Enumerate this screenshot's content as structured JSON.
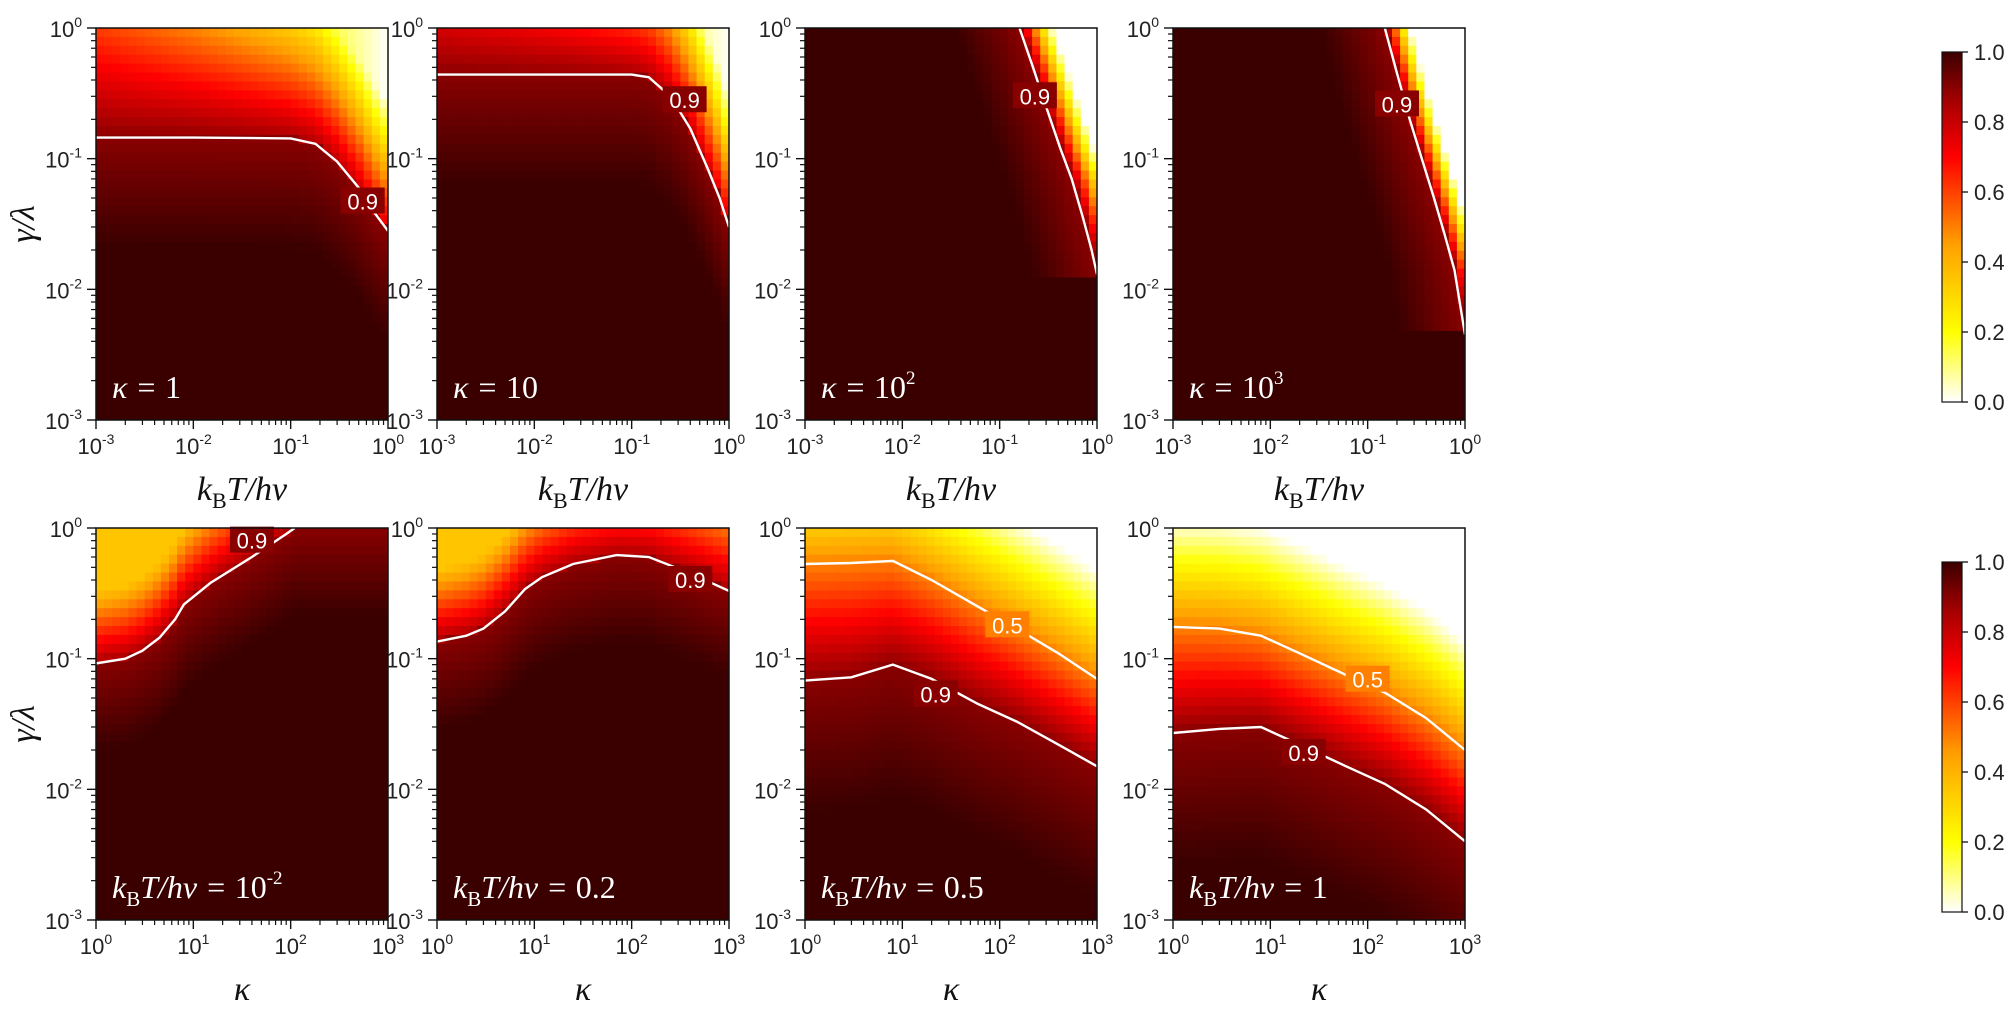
{
  "chart_data": [
    {
      "type": "heatmap",
      "xlabel": {
        "pre": "k",
        "sub": "B",
        "post": "T/hν"
      },
      "ylabel": "γ/λ",
      "x_scale": "log",
      "y_scale": "log",
      "xlim": [
        0.001,
        1
      ],
      "ylim": [
        0.001,
        1
      ],
      "x_ticks": [
        {
          "b": "10",
          "e": "-3"
        },
        {
          "b": "10",
          "e": "-2"
        },
        {
          "b": "10",
          "e": "-1"
        },
        {
          "b": "10",
          "e": "0"
        }
      ],
      "y_ticks": [
        {
          "b": "10",
          "e": "-3"
        },
        {
          "b": "10",
          "e": "-2"
        },
        {
          "b": "10",
          "e": "-1"
        },
        {
          "b": "10",
          "e": "0"
        }
      ],
      "annotation": {
        "pre": "κ = ",
        "sub": "",
        "mid": "",
        "base": "1",
        "sup": ""
      },
      "contours": [
        {
          "level": 0.9,
          "label": "0.9",
          "label_at": [
            0.55,
            0.047
          ],
          "points": [
            [
              0.001,
              0.145
            ],
            [
              0.01,
              0.145
            ],
            [
              0.1,
              0.143
            ],
            [
              0.18,
              0.13
            ],
            [
              0.3,
              0.095
            ],
            [
              0.5,
              0.06
            ],
            [
              0.7,
              0.04
            ],
            [
              1,
              0.028
            ]
          ]
        }
      ]
    },
    {
      "type": "heatmap",
      "xlabel": {
        "pre": "k",
        "sub": "B",
        "post": "T/hν"
      },
      "ylabel": "",
      "x_scale": "log",
      "y_scale": "log",
      "xlim": [
        0.001,
        1
      ],
      "ylim": [
        0.001,
        1
      ],
      "x_ticks": [
        {
          "b": "10",
          "e": "-3"
        },
        {
          "b": "10",
          "e": "-2"
        },
        {
          "b": "10",
          "e": "-1"
        },
        {
          "b": "10",
          "e": "0"
        }
      ],
      "y_ticks": [
        {
          "b": "10",
          "e": "-3"
        },
        {
          "b": "10",
          "e": "-2"
        },
        {
          "b": "10",
          "e": "-1"
        },
        {
          "b": "10",
          "e": "0"
        }
      ],
      "annotation": {
        "pre": "κ = ",
        "sub": "",
        "mid": "",
        "base": "10",
        "sup": ""
      },
      "contours": [
        {
          "level": 0.9,
          "label": "0.9",
          "label_at": [
            0.35,
            0.28
          ],
          "points": [
            [
              0.001,
              0.44
            ],
            [
              0.01,
              0.44
            ],
            [
              0.1,
              0.44
            ],
            [
              0.15,
              0.42
            ],
            [
              0.25,
              0.3
            ],
            [
              0.4,
              0.17
            ],
            [
              0.6,
              0.085
            ],
            [
              0.8,
              0.05
            ],
            [
              1,
              0.03
            ]
          ]
        }
      ]
    },
    {
      "type": "heatmap",
      "xlabel": {
        "pre": "k",
        "sub": "B",
        "post": "T/hν"
      },
      "ylabel": "",
      "x_scale": "log",
      "y_scale": "log",
      "xlim": [
        0.001,
        1
      ],
      "ylim": [
        0.001,
        1
      ],
      "x_ticks": [
        {
          "b": "10",
          "e": "-3"
        },
        {
          "b": "10",
          "e": "-2"
        },
        {
          "b": "10",
          "e": "-1"
        },
        {
          "b": "10",
          "e": "0"
        }
      ],
      "y_ticks": [
        {
          "b": "10",
          "e": "-3"
        },
        {
          "b": "10",
          "e": "-2"
        },
        {
          "b": "10",
          "e": "-1"
        },
        {
          "b": "10",
          "e": "0"
        }
      ],
      "annotation": {
        "pre": "κ = ",
        "sub": "",
        "mid": "",
        "base": "10",
        "sup": "2"
      },
      "contours": [
        {
          "level": 0.9,
          "label": "0.9",
          "label_at": [
            0.23,
            0.3
          ],
          "points": [
            [
              0.16,
              1.0
            ],
            [
              0.22,
              0.5
            ],
            [
              0.3,
              0.25
            ],
            [
              0.42,
              0.12
            ],
            [
              0.55,
              0.07
            ],
            [
              0.72,
              0.035
            ],
            [
              0.88,
              0.02
            ],
            [
              1,
              0.013
            ]
          ]
        }
      ]
    },
    {
      "type": "heatmap",
      "xlabel": {
        "pre": "k",
        "sub": "B",
        "post": "T/hν"
      },
      "ylabel": "",
      "x_scale": "log",
      "y_scale": "log",
      "xlim": [
        0.001,
        1
      ],
      "ylim": [
        0.001,
        1
      ],
      "x_ticks": [
        {
          "b": "10",
          "e": "-3"
        },
        {
          "b": "10",
          "e": "-2"
        },
        {
          "b": "10",
          "e": "-1"
        },
        {
          "b": "10",
          "e": "0"
        }
      ],
      "y_ticks": [
        {
          "b": "10",
          "e": "-3"
        },
        {
          "b": "10",
          "e": "-2"
        },
        {
          "b": "10",
          "e": "-1"
        },
        {
          "b": "10",
          "e": "0"
        }
      ],
      "annotation": {
        "pre": "κ = ",
        "sub": "",
        "mid": "",
        "base": "10",
        "sup": "3"
      },
      "contours": [
        {
          "level": 0.9,
          "label": "0.9",
          "label_at": [
            0.2,
            0.26
          ],
          "points": [
            [
              0.15,
              1.0
            ],
            [
              0.2,
              0.45
            ],
            [
              0.27,
              0.2
            ],
            [
              0.36,
              0.1
            ],
            [
              0.48,
              0.05
            ],
            [
              0.62,
              0.026
            ],
            [
              0.78,
              0.014
            ],
            [
              1,
              0.0045
            ]
          ]
        }
      ]
    },
    {
      "type": "heatmap",
      "xlabel": "κ",
      "ylabel": "γ/λ",
      "x_scale": "log",
      "y_scale": "log",
      "xlim": [
        1,
        1000
      ],
      "ylim": [
        0.001,
        1
      ],
      "x_ticks": [
        {
          "b": "10",
          "e": "0"
        },
        {
          "b": "10",
          "e": "1"
        },
        {
          "b": "10",
          "e": "2"
        },
        {
          "b": "10",
          "e": "3"
        }
      ],
      "y_ticks": [
        {
          "b": "10",
          "e": "-3"
        },
        {
          "b": "10",
          "e": "-2"
        },
        {
          "b": "10",
          "e": "-1"
        },
        {
          "b": "10",
          "e": "0"
        }
      ],
      "annotation": {
        "pre": "k",
        "sub": "B",
        "mid": "T/hν = ",
        "base": "10",
        "sup": "-2"
      },
      "contours": [
        {
          "level": 0.9,
          "label": "0.9",
          "label_at": [
            40,
            0.8
          ],
          "points": [
            [
              1,
              0.092
            ],
            [
              2,
              0.1
            ],
            [
              3,
              0.115
            ],
            [
              4.5,
              0.145
            ],
            [
              6.5,
              0.2
            ],
            [
              8,
              0.26
            ],
            [
              15,
              0.38
            ],
            [
              40,
              0.6
            ],
            [
              90,
              0.9
            ],
            [
              110,
              1.0
            ]
          ]
        }
      ]
    },
    {
      "type": "heatmap",
      "xlabel": "κ",
      "ylabel": "",
      "x_scale": "log",
      "y_scale": "log",
      "xlim": [
        1,
        1000
      ],
      "ylim": [
        0.001,
        1
      ],
      "x_ticks": [
        {
          "b": "10",
          "e": "0"
        },
        {
          "b": "10",
          "e": "1"
        },
        {
          "b": "10",
          "e": "2"
        },
        {
          "b": "10",
          "e": "3"
        }
      ],
      "y_ticks": [
        {
          "b": "10",
          "e": "-3"
        },
        {
          "b": "10",
          "e": "-2"
        },
        {
          "b": "10",
          "e": "-1"
        },
        {
          "b": "10",
          "e": "0"
        }
      ],
      "annotation": {
        "pre": "k",
        "sub": "B",
        "mid": "T/hν = ",
        "base": "0.2",
        "sup": ""
      },
      "contours": [
        {
          "level": 0.9,
          "label": "0.9",
          "label_at": [
            400,
            0.4
          ],
          "points": [
            [
              1,
              0.135
            ],
            [
              2,
              0.15
            ],
            [
              3,
              0.17
            ],
            [
              5,
              0.23
            ],
            [
              8,
              0.34
            ],
            [
              12,
              0.42
            ],
            [
              25,
              0.53
            ],
            [
              70,
              0.62
            ],
            [
              150,
              0.6
            ],
            [
              400,
              0.45
            ],
            [
              1000,
              0.33
            ]
          ]
        }
      ]
    },
    {
      "type": "heatmap",
      "xlabel": "κ",
      "ylabel": "",
      "x_scale": "log",
      "y_scale": "log",
      "xlim": [
        1,
        1000
      ],
      "ylim": [
        0.001,
        1
      ],
      "x_ticks": [
        {
          "b": "10",
          "e": "0"
        },
        {
          "b": "10",
          "e": "1"
        },
        {
          "b": "10",
          "e": "2"
        },
        {
          "b": "10",
          "e": "3"
        }
      ],
      "y_ticks": [
        {
          "b": "10",
          "e": "-3"
        },
        {
          "b": "10",
          "e": "-2"
        },
        {
          "b": "10",
          "e": "-1"
        },
        {
          "b": "10",
          "e": "0"
        }
      ],
      "annotation": {
        "pre": "k",
        "sub": "B",
        "mid": "T/hν = ",
        "base": "0.5",
        "sup": ""
      },
      "contours": [
        {
          "level": 0.5,
          "label": "0.5",
          "label_at": [
            120,
            0.18
          ],
          "points": [
            [
              1,
              0.53
            ],
            [
              3,
              0.54
            ],
            [
              8,
              0.56
            ],
            [
              20,
              0.4
            ],
            [
              60,
              0.25
            ],
            [
              150,
              0.17
            ],
            [
              400,
              0.11
            ],
            [
              1000,
              0.07
            ]
          ]
        },
        {
          "level": 0.9,
          "label": "0.9",
          "label_at": [
            22,
            0.053
          ],
          "points": [
            [
              1,
              0.068
            ],
            [
              3,
              0.072
            ],
            [
              8,
              0.09
            ],
            [
              20,
              0.07
            ],
            [
              60,
              0.045
            ],
            [
              150,
              0.033
            ],
            [
              400,
              0.022
            ],
            [
              1000,
              0.015
            ]
          ]
        }
      ]
    },
    {
      "type": "heatmap",
      "xlabel": "κ",
      "ylabel": "",
      "x_scale": "log",
      "y_scale": "log",
      "xlim": [
        1,
        1000
      ],
      "ylim": [
        0.001,
        1
      ],
      "x_ticks": [
        {
          "b": "10",
          "e": "0"
        },
        {
          "b": "10",
          "e": "1"
        },
        {
          "b": "10",
          "e": "2"
        },
        {
          "b": "10",
          "e": "3"
        }
      ],
      "y_ticks": [
        {
          "b": "10",
          "e": "-3"
        },
        {
          "b": "10",
          "e": "-2"
        },
        {
          "b": "10",
          "e": "-1"
        },
        {
          "b": "10",
          "e": "0"
        }
      ],
      "annotation": {
        "pre": "k",
        "sub": "B",
        "mid": "T/hν = ",
        "base": "1",
        "sup": ""
      },
      "contours": [
        {
          "level": 0.5,
          "label": "0.5",
          "label_at": [
            100,
            0.069
          ],
          "points": [
            [
              1,
              0.175
            ],
            [
              3,
              0.17
            ],
            [
              8,
              0.15
            ],
            [
              20,
              0.11
            ],
            [
              60,
              0.075
            ],
            [
              150,
              0.055
            ],
            [
              400,
              0.035
            ],
            [
              1000,
              0.02
            ]
          ]
        },
        {
          "level": 0.9,
          "label": "0.9",
          "label_at": [
            22,
            0.019
          ],
          "points": [
            [
              1,
              0.027
            ],
            [
              3,
              0.029
            ],
            [
              8,
              0.03
            ],
            [
              20,
              0.022
            ],
            [
              60,
              0.015
            ],
            [
              150,
              0.011
            ],
            [
              400,
              0.007
            ],
            [
              1000,
              0.004
            ]
          ]
        }
      ]
    }
  ],
  "colorbars": [
    {
      "ticks": [
        "0.0",
        "0.2",
        "0.4",
        "0.6",
        "0.8",
        "1.0"
      ],
      "range": [
        0,
        1
      ]
    },
    {
      "ticks": [
        "0.0",
        "0.2",
        "0.4",
        "0.6",
        "0.8",
        "1.0"
      ],
      "range": [
        0,
        1
      ]
    }
  ],
  "colormap": {
    "name": "hot-reversed",
    "stops": [
      {
        "v": 0.0,
        "color": "#ffffff"
      },
      {
        "v": 0.2,
        "color": "#ffff00"
      },
      {
        "v": 0.45,
        "color": "#ffa000"
      },
      {
        "v": 0.7,
        "color": "#ff0000"
      },
      {
        "v": 0.87,
        "color": "#a00000"
      },
      {
        "v": 1.0,
        "color": "#3a0000"
      }
    ]
  }
}
